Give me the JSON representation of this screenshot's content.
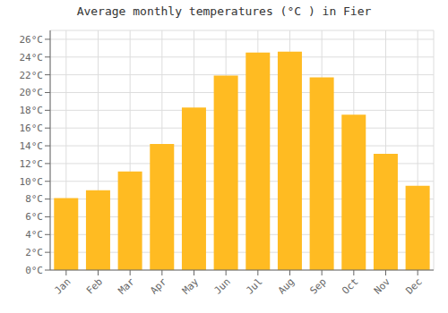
{
  "chart_data": {
    "type": "bar",
    "title": "Average monthly temperatures (°C ) in Fier",
    "categories": [
      "Jan",
      "Feb",
      "Mar",
      "Apr",
      "May",
      "Jun",
      "Jul",
      "Aug",
      "Sep",
      "Oct",
      "Nov",
      "Dec"
    ],
    "values": [
      8.1,
      9.0,
      11.1,
      14.2,
      18.3,
      21.9,
      24.5,
      24.6,
      21.7,
      17.5,
      13.1,
      9.5
    ],
    "color": "#FFBB22",
    "ylim": [
      0,
      27
    ],
    "yticks": [
      {
        "value": 0,
        "label": "0°C"
      },
      {
        "value": 2,
        "label": "2°C"
      },
      {
        "value": 4,
        "label": "4°C"
      },
      {
        "value": 6,
        "label": "6°C"
      },
      {
        "value": 8,
        "label": "8°C"
      },
      {
        "value": 10,
        "label": "10°C"
      },
      {
        "value": 12,
        "label": "12°C"
      },
      {
        "value": 14,
        "label": "14°C"
      },
      {
        "value": 16,
        "label": "16°C"
      },
      {
        "value": 18,
        "label": "18°C"
      },
      {
        "value": 20,
        "label": "20°C"
      },
      {
        "value": 22,
        "label": "22°C"
      },
      {
        "value": 24,
        "label": "24°C"
      },
      {
        "value": 26,
        "label": "26°C"
      }
    ],
    "grid": true
  }
}
